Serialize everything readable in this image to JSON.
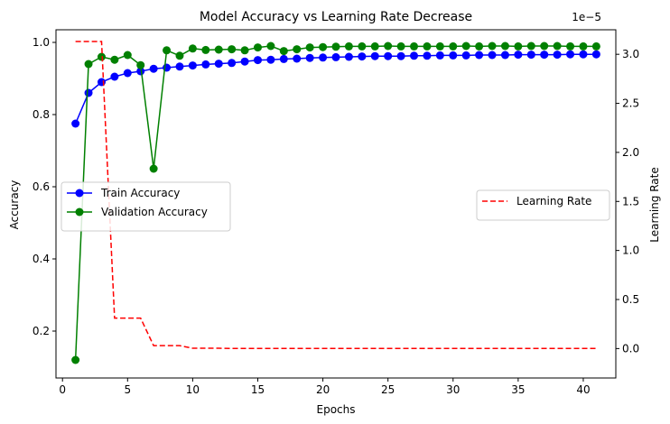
{
  "chart_data": {
    "type": "line",
    "title": "Model Accuracy vs Learning Rate Decrease",
    "xlabel": "Epochs",
    "ylabel": "Accuracy",
    "ylabel_right": "Learning Rate",
    "right_axis_multiplier": "1e−5",
    "xlim": [
      -0.5,
      42.5
    ],
    "ylim": [
      0.07,
      1.035
    ],
    "ylim_right": [
      -3e-06,
      3.25e-05
    ],
    "x_ticks": [
      0,
      5,
      10,
      15,
      20,
      25,
      30,
      35,
      40
    ],
    "y_ticks": [
      0.2,
      0.4,
      0.6,
      0.8,
      1.0
    ],
    "y_tick_labels": [
      "0.2",
      "0.4",
      "0.6",
      "0.8",
      "1.0"
    ],
    "y_right_ticks": [
      0,
      5e-06,
      1e-05,
      1.5e-05,
      2e-05,
      2.5e-05,
      3e-05
    ],
    "y_right_tick_labels": [
      "0.0",
      "0.5",
      "1.0",
      "1.5",
      "2.0",
      "2.5",
      "3.0"
    ],
    "grid": false,
    "legend_left_placement": "center-left",
    "legend_right_placement": "center-right",
    "x": [
      1,
      2,
      3,
      4,
      5,
      6,
      7,
      8,
      9,
      10,
      11,
      12,
      13,
      14,
      15,
      16,
      17,
      18,
      19,
      20,
      21,
      22,
      23,
      24,
      25,
      26,
      27,
      28,
      29,
      30,
      31,
      32,
      33,
      34,
      35,
      36,
      37,
      38,
      39,
      40,
      41
    ],
    "series": [
      {
        "name": "Train Accuracy",
        "axis": "left",
        "color": "#0000ff",
        "style": "solid",
        "marker": "circle",
        "values": [
          0.775,
          0.86,
          0.89,
          0.905,
          0.915,
          0.92,
          0.927,
          0.93,
          0.933,
          0.936,
          0.939,
          0.941,
          0.943,
          0.947,
          0.951,
          0.952,
          0.954,
          0.955,
          0.957,
          0.958,
          0.959,
          0.96,
          0.961,
          0.962,
          0.962,
          0.962,
          0.963,
          0.963,
          0.964,
          0.964,
          0.964,
          0.965,
          0.965,
          0.965,
          0.966,
          0.966,
          0.966,
          0.966,
          0.967,
          0.967,
          0.967
        ]
      },
      {
        "name": "Validation Accuracy",
        "axis": "left",
        "color": "#008000",
        "style": "solid",
        "marker": "circle",
        "values": [
          0.12,
          0.94,
          0.96,
          0.952,
          0.965,
          0.937,
          0.65,
          0.978,
          0.963,
          0.983,
          0.979,
          0.98,
          0.981,
          0.978,
          0.986,
          0.99,
          0.976,
          0.981,
          0.986,
          0.987,
          0.988,
          0.989,
          0.989,
          0.989,
          0.99,
          0.989,
          0.989,
          0.989,
          0.989,
          0.989,
          0.99,
          0.989,
          0.99,
          0.99,
          0.989,
          0.99,
          0.99,
          0.99,
          0.989,
          0.989,
          0.989
        ]
      },
      {
        "name": "Learning Rate",
        "axis": "right",
        "color": "#ff0000",
        "style": "dashed",
        "marker": "none",
        "values": [
          3.13e-05,
          3.13e-05,
          3.13e-05,
          3.1e-06,
          3.1e-06,
          3.1e-06,
          3e-07,
          3e-07,
          3e-07,
          3e-08,
          3e-08,
          3e-08,
          1e-08,
          1e-08,
          1e-08,
          1e-08,
          1e-08,
          1e-08,
          1e-08,
          1e-08,
          1e-08,
          1e-08,
          1e-08,
          1e-08,
          1e-08,
          1e-08,
          1e-08,
          1e-08,
          1e-08,
          1e-08,
          1e-08,
          1e-08,
          1e-08,
          1e-08,
          1e-08,
          1e-08,
          1e-08,
          1e-08,
          1e-08,
          1e-08,
          1e-08
        ]
      }
    ]
  }
}
